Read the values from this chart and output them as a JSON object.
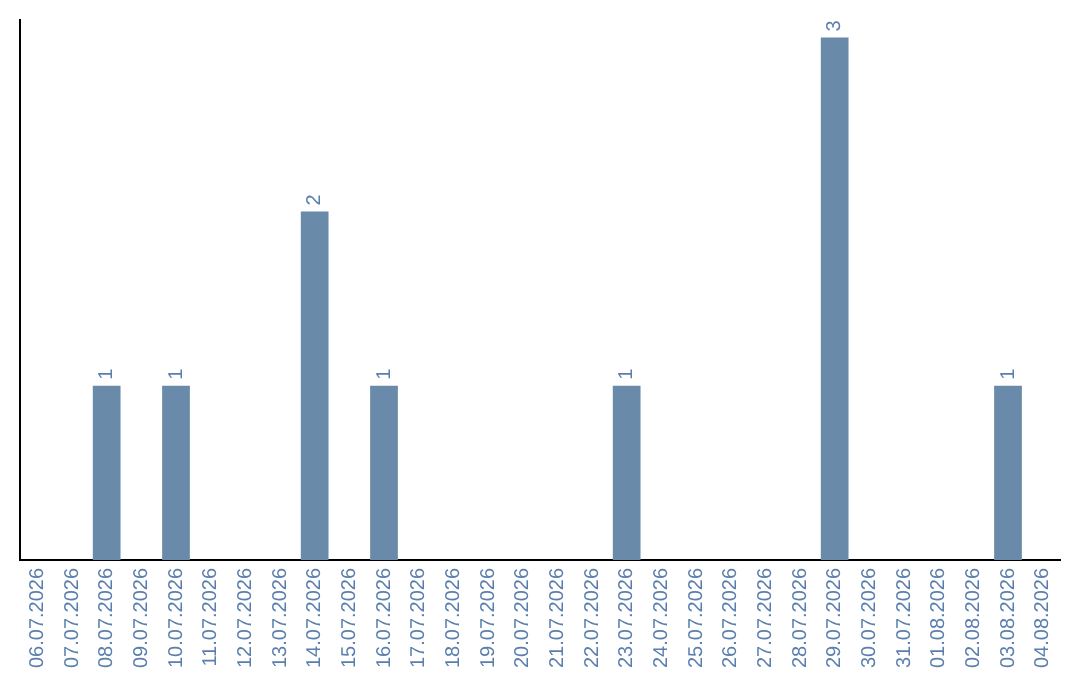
{
  "chart_data": {
    "type": "bar",
    "categories": [
      "06.07.2026",
      "07.07.2026",
      "08.07.2026",
      "09.07.2026",
      "10.07.2026",
      "11.07.2026",
      "12.07.2026",
      "13.07.2026",
      "14.07.2026",
      "15.07.2026",
      "16.07.2026",
      "17.07.2026",
      "18.07.2026",
      "19.07.2026",
      "20.07.2026",
      "21.07.2026",
      "22.07.2026",
      "23.07.2026",
      "24.07.2026",
      "25.07.2026",
      "26.07.2026",
      "27.07.2026",
      "28.07.2026",
      "29.07.2026",
      "30.07.2026",
      "31.07.2026",
      "01.08.2026",
      "02.08.2026",
      "03.08.2026",
      "04.08.2026"
    ],
    "values": [
      0,
      0,
      1,
      0,
      1,
      0,
      0,
      0,
      2,
      0,
      1,
      0,
      0,
      0,
      0,
      0,
      0,
      1,
      0,
      0,
      0,
      0,
      0,
      3,
      0,
      0,
      0,
      0,
      1,
      0
    ],
    "color": "#6a8aaa",
    "ylim": [
      0,
      3.1
    ],
    "value_labels": [
      null,
      null,
      "1",
      null,
      "1",
      null,
      null,
      null,
      "2",
      null,
      "1",
      null,
      null,
      null,
      null,
      null,
      null,
      "1",
      null,
      null,
      null,
      null,
      null,
      "3",
      null,
      null,
      null,
      null,
      "1",
      null
    ],
    "tick_labels": "x",
    "grid": false,
    "legend": false
  }
}
